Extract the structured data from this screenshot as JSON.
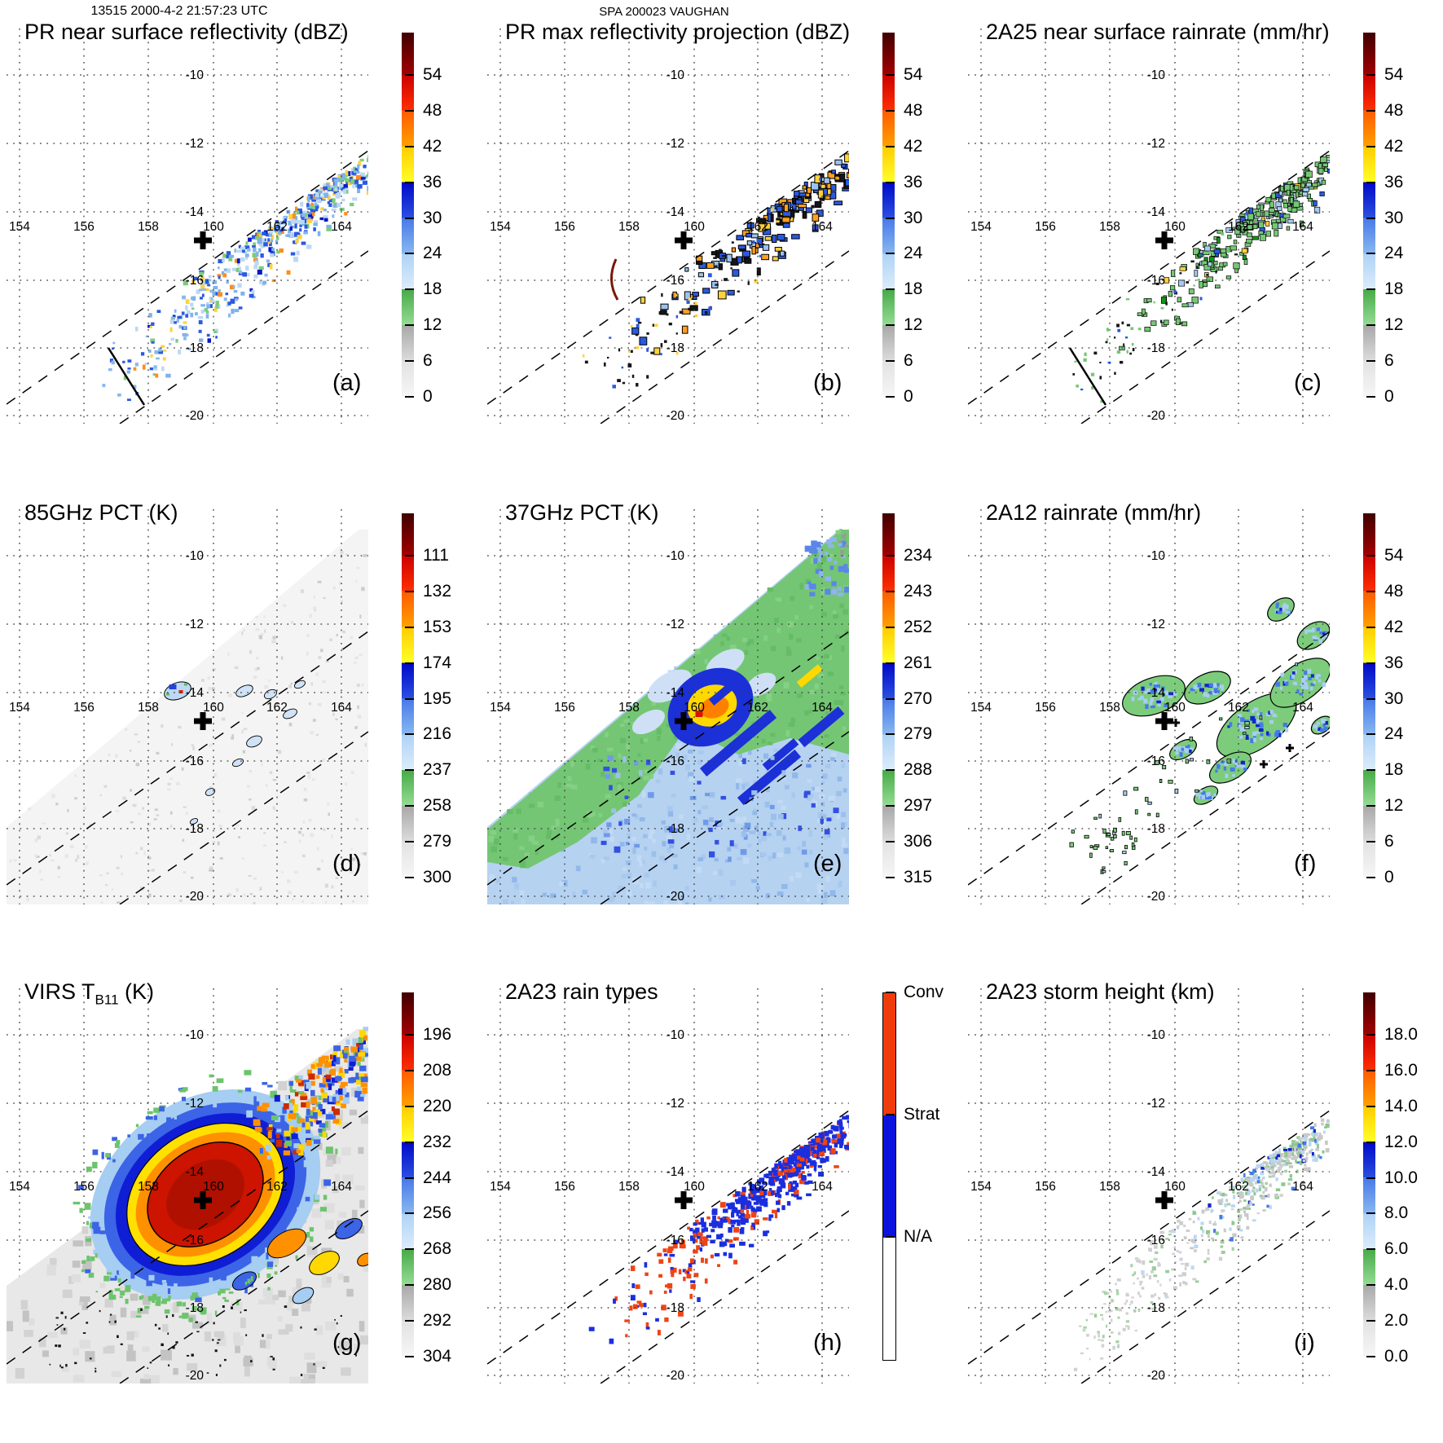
{
  "header": {
    "scan_id": "13515 2000-4-2 21:57:23 UTC",
    "storm_id": "SPA 200023 VAUGHAN"
  },
  "axes": {
    "lon_labels": [
      "154",
      "156",
      "158",
      "160",
      "162",
      "164"
    ],
    "lat_labels": [
      "-10",
      "-12",
      "-14",
      "-16",
      "-18",
      "-20"
    ]
  },
  "panels": [
    {
      "id": "a",
      "letter": "(a)",
      "title": "PR near surface reflectivity (dBZ)",
      "cbar_type": "scalar",
      "cbar_labels": [
        "54",
        "48",
        "42",
        "36",
        "30",
        "24",
        "18",
        "12",
        "6",
        "0"
      ]
    },
    {
      "id": "b",
      "letter": "(b)",
      "title": "PR max reflectivity projection (dBZ)",
      "cbar_type": "scalar",
      "cbar_labels": [
        "54",
        "48",
        "42",
        "36",
        "30",
        "24",
        "18",
        "12",
        "6",
        "0"
      ]
    },
    {
      "id": "c",
      "letter": "(c)",
      "title": "2A25 near surface rainrate (mm/hr)",
      "cbar_type": "scalar",
      "cbar_labels": [
        "54",
        "48",
        "42",
        "36",
        "30",
        "24",
        "18",
        "12",
        "6",
        "0"
      ]
    },
    {
      "id": "d",
      "letter": "(d)",
      "title": "85GHz PCT (K)",
      "cbar_type": "scalar",
      "cbar_labels": [
        "111",
        "132",
        "153",
        "174",
        "195",
        "216",
        "237",
        "258",
        "279",
        "300"
      ]
    },
    {
      "id": "e",
      "letter": "(e)",
      "title": "37GHz PCT (K)",
      "cbar_type": "scalar",
      "cbar_labels": [
        "234",
        "243",
        "252",
        "261",
        "270",
        "279",
        "288",
        "297",
        "306",
        "315"
      ]
    },
    {
      "id": "f",
      "letter": "(f)",
      "title": "2A12 rainrate (mm/hr)",
      "cbar_type": "scalar",
      "cbar_labels": [
        "54",
        "48",
        "42",
        "36",
        "30",
        "24",
        "18",
        "12",
        "6",
        "0"
      ]
    },
    {
      "id": "g",
      "letter": "(g)",
      "title_pre": "VIRS T",
      "title_sub": "B11",
      "title_post": " (K)",
      "cbar_type": "scalar",
      "cbar_labels": [
        "196",
        "208",
        "220",
        "232",
        "244",
        "256",
        "268",
        "280",
        "292",
        "304"
      ]
    },
    {
      "id": "h",
      "letter": "(h)",
      "title": "2A23 rain types",
      "cbar_type": "raintype",
      "cbar_labels": [
        "Conv",
        "Strat",
        "N/A"
      ]
    },
    {
      "id": "i",
      "letter": "(i)",
      "title": "2A23 storm height (km)",
      "cbar_type": "scalar",
      "cbar_labels": [
        "18.0",
        "16.0",
        "14.0",
        "12.0",
        "10.0",
        "8.0",
        "6.0",
        "4.0",
        "2.0",
        "0.0"
      ]
    }
  ],
  "colorbar_gradient": [
    [
      0,
      "#ffffff"
    ],
    [
      0.7,
      "#ffffff"
    ],
    [
      0.7,
      "#f6f6f6"
    ],
    [
      10.4,
      "#e2e2e2"
    ],
    [
      10.4,
      "#dcdcdc"
    ],
    [
      20.2,
      "#a8a8a8"
    ],
    [
      20.2,
      "#96dc96"
    ],
    [
      30,
      "#46aa46"
    ],
    [
      30,
      "#dcecfa"
    ],
    [
      39.7,
      "#aed2f6"
    ],
    [
      39.7,
      "#88b8f0"
    ],
    [
      49.5,
      "#4678e8"
    ],
    [
      49.5,
      "#2a50e0"
    ],
    [
      59.2,
      "#0008c8"
    ],
    [
      59.2,
      "#ffff28"
    ],
    [
      69,
      "#ffcc00"
    ],
    [
      69,
      "#ffa000"
    ],
    [
      78.8,
      "#ff5a00"
    ],
    [
      78.8,
      "#ff3000"
    ],
    [
      88.4,
      "#cc0000"
    ],
    [
      88.4,
      "#a40000"
    ],
    [
      100,
      "#400000"
    ]
  ],
  "raintype_colors": {
    "conv": "#f03c0c",
    "strat": "#0a14dc",
    "na": "#ffffff"
  },
  "marker_color": "#000000",
  "chart_data": {
    "type": "heatmap",
    "layout": "3x3 multi-panel satellite overpass maps",
    "shared_axes": {
      "lon_ticks": [
        154,
        156,
        158,
        160,
        162,
        164
      ],
      "lat_ticks": [
        -10,
        -12,
        -14,
        -16,
        -18,
        -20
      ],
      "lon_range": [
        153.6,
        165.0
      ],
      "lat_range": [
        -20.2,
        -8.6
      ],
      "grid": "2-degree dotted graticule"
    },
    "annotations": {
      "center_marker": {
        "lon": 159.7,
        "lat": -14.8,
        "symbol": "bold black plus"
      },
      "swath_edges": "two parallel dashed lines running SW to NE (PR swath limits) in every panel",
      "cross_section_line": "short solid black segment near 157.3E 18.5S in panels a and c",
      "precip_band": "rain features aligned SW-NE inside swath; cyclone core near 160E 15S"
    },
    "panels": [
      {
        "id": "a",
        "title": "PR near surface reflectivity (dBZ)",
        "units": "dBZ",
        "colorbar_ticks": [
          54,
          48,
          42,
          36,
          30,
          24,
          18,
          12,
          6,
          0
        ]
      },
      {
        "id": "b",
        "title": "PR max reflectivity projection (dBZ)",
        "units": "dBZ",
        "colorbar_ticks": [
          54,
          48,
          42,
          36,
          30,
          24,
          18,
          12,
          6,
          0
        ]
      },
      {
        "id": "c",
        "title": "2A25 near surface rainrate (mm/hr)",
        "units": "mm/hr",
        "colorbar_ticks": [
          54,
          48,
          42,
          36,
          30,
          24,
          18,
          12,
          6,
          0
        ]
      },
      {
        "id": "d",
        "title": "85GHz PCT (K)",
        "units": "K",
        "colorbar_ticks": [
          111,
          132,
          153,
          174,
          195,
          216,
          237,
          258,
          279,
          300
        ]
      },
      {
        "id": "e",
        "title": "37GHz PCT (K)",
        "units": "K",
        "colorbar_ticks": [
          234,
          243,
          252,
          261,
          270,
          279,
          288,
          297,
          306,
          315
        ]
      },
      {
        "id": "f",
        "title": "2A12 rainrate (mm/hr)",
        "units": "mm/hr",
        "colorbar_ticks": [
          54,
          48,
          42,
          36,
          30,
          24,
          18,
          12,
          6,
          0
        ]
      },
      {
        "id": "g",
        "title": "VIRS T_B11 (K)",
        "units": "K",
        "colorbar_ticks": [
          196,
          208,
          220,
          232,
          244,
          256,
          268,
          280,
          292,
          304
        ]
      },
      {
        "id": "h",
        "title": "2A23 rain types",
        "units": "category",
        "categories": [
          "Conv",
          "Strat",
          "N/A"
        ]
      },
      {
        "id": "i",
        "title": "2A23 storm height (km)",
        "units": "km",
        "colorbar_ticks": [
          18.0,
          16.0,
          14.0,
          12.0,
          10.0,
          8.0,
          6.0,
          4.0,
          2.0,
          0.0
        ]
      }
    ]
  }
}
